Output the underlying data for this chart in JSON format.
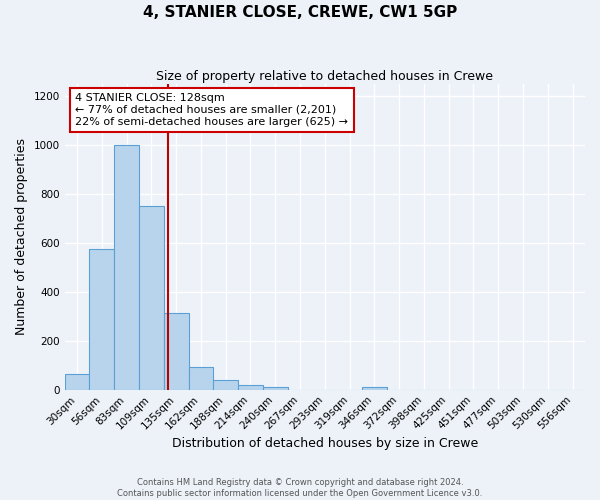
{
  "title": "4, STANIER CLOSE, CREWE, CW1 5GP",
  "subtitle": "Size of property relative to detached houses in Crewe",
  "xlabel": "Distribution of detached houses by size in Crewe",
  "ylabel": "Number of detached properties",
  "bar_labels": [
    "30sqm",
    "56sqm",
    "83sqm",
    "109sqm",
    "135sqm",
    "162sqm",
    "188sqm",
    "214sqm",
    "240sqm",
    "267sqm",
    "293sqm",
    "319sqm",
    "346sqm",
    "372sqm",
    "398sqm",
    "425sqm",
    "451sqm",
    "477sqm",
    "503sqm",
    "530sqm",
    "556sqm"
  ],
  "bar_values": [
    65,
    575,
    1000,
    750,
    315,
    95,
    38,
    20,
    10,
    0,
    0,
    0,
    10,
    0,
    0,
    0,
    0,
    0,
    0,
    0,
    0
  ],
  "vline_x": 3.69,
  "bar_color": "#b8d4ec",
  "bar_edge_color": "#5c9fd4",
  "vline_color": "#bb0000",
  "annotation_line1": "4 STANIER CLOSE: 128sqm",
  "annotation_line2": "← 77% of detached houses are smaller (2,201)",
  "annotation_line3": "22% of semi-detached houses are larger (625) →",
  "annotation_box_color": "#ffffff",
  "annotation_box_edge_color": "#cc0000",
  "ylim": [
    0,
    1250
  ],
  "yticks": [
    0,
    200,
    400,
    600,
    800,
    1000,
    1200
  ],
  "footer_line1": "Contains HM Land Registry data © Crown copyright and database right 2024.",
  "footer_line2": "Contains public sector information licensed under the Open Government Licence v3.0.",
  "background_color": "#edf2f9",
  "grid_color": "#ffffff",
  "title_fontsize": 11,
  "subtitle_fontsize": 9,
  "xlabel_fontsize": 9,
  "ylabel_fontsize": 9,
  "tick_fontsize": 7.5,
  "annotation_fontsize": 8,
  "footer_fontsize": 6
}
